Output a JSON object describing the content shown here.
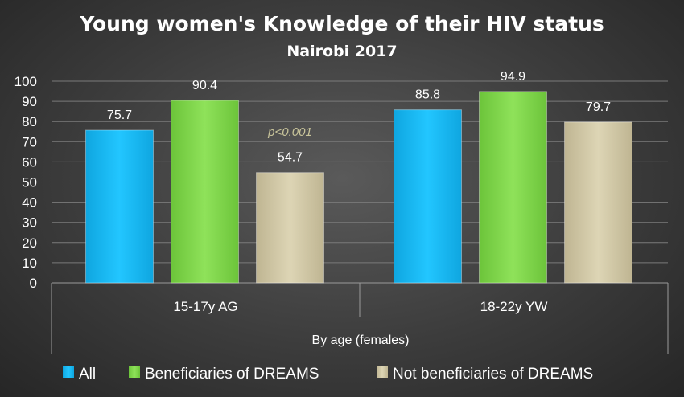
{
  "chart_data": {
    "type": "bar",
    "title": "Young women's Knowledge of their HIV status",
    "subtitle": "Nairobi 2017",
    "categories": [
      "15-17y AG",
      "18-22y YW"
    ],
    "xlabel": "By age (females)",
    "ylabel": "",
    "ylim": [
      0,
      100
    ],
    "yticks": [
      0,
      10,
      20,
      30,
      40,
      50,
      60,
      70,
      80,
      90,
      100
    ],
    "grid": true,
    "legend_position": "bottom",
    "series": [
      {
        "name": "All",
        "values": [
          75.7,
          85.8
        ],
        "color": "#1ab8f0"
      },
      {
        "name": "Beneficiaries of DREAMS",
        "values": [
          90.4,
          94.9
        ],
        "color": "#7fd44a"
      },
      {
        "name": "Not beneficiaries of DREAMS",
        "values": [
          54.7,
          79.7
        ],
        "color": "#cfc6a4"
      }
    ],
    "annotations": [
      {
        "text": "p<0.001",
        "category": "15-17y AG"
      }
    ]
  }
}
